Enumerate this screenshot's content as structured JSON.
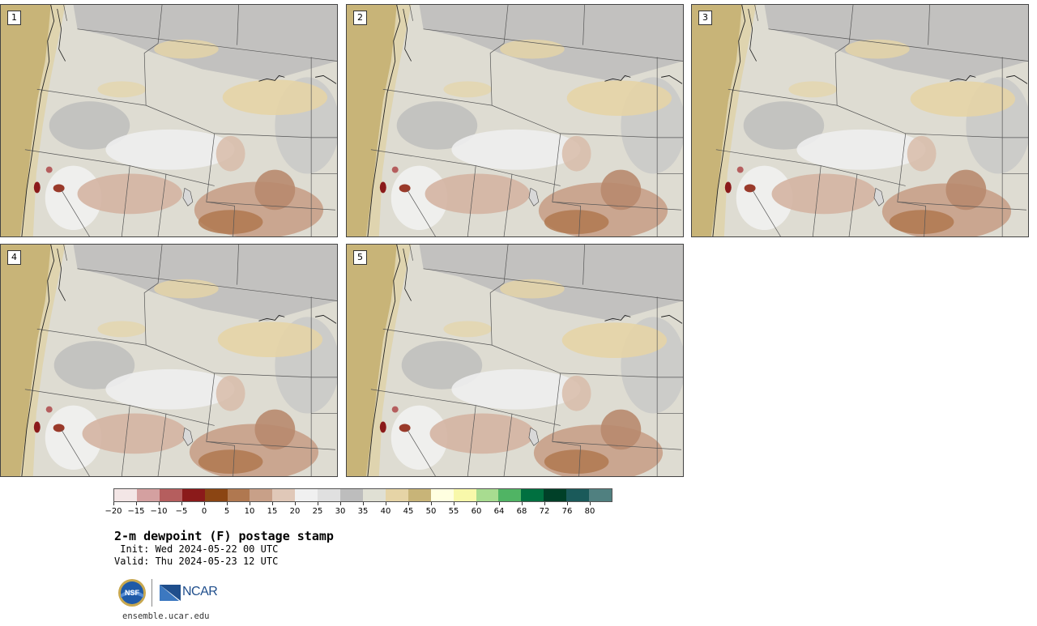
{
  "panels": [
    {
      "label": "1"
    },
    {
      "label": "2"
    },
    {
      "label": "3"
    },
    {
      "label": "4"
    },
    {
      "label": "5"
    }
  ],
  "colorbar": {
    "colors": [
      "#f3e6e6",
      "#d4a0a0",
      "#b55e5e",
      "#8b1a1a",
      "#8b4513",
      "#b07850",
      "#c8a088",
      "#e0c8b8",
      "#f0f0f0",
      "#e0e0e0",
      "#bdbdbd",
      "#e0e0d4",
      "#e6d4a6",
      "#c8b478",
      "#ffffe0",
      "#f8f8aa",
      "#a8dc90",
      "#50b464",
      "#007040",
      "#004028",
      "#1a5a5a",
      "#508080"
    ],
    "ticks": [
      "−20",
      "−15",
      "−10",
      "−5",
      "0",
      "5",
      "10",
      "15",
      "20",
      "25",
      "30",
      "35",
      "40",
      "45",
      "50",
      "55",
      "60",
      "64",
      "68",
      "72",
      "76",
      "80"
    ]
  },
  "title": "2-m dewpoint (F) postage stamp",
  "init": " Init: Wed 2024-05-22 00 UTC",
  "valid": "Valid: Thu 2024-05-23 12 UTC",
  "logos": {
    "nsf": "NSF",
    "ncar": "NCAR"
  },
  "site": "ensemble.ucar.edu"
}
